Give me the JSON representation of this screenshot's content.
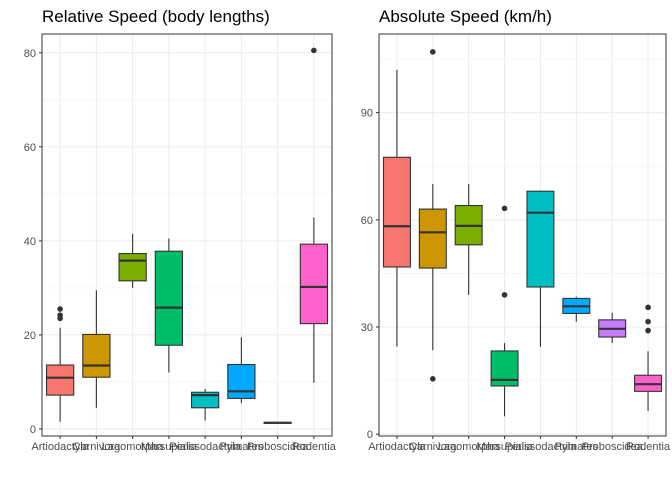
{
  "chart_data": [
    {
      "type": "boxplot",
      "title": "Relative Speed (body lengths)",
      "xlabel": "",
      "ylabel": "",
      "ylim": [
        -1.5,
        84
      ],
      "yticks": [
        0,
        20,
        40,
        60,
        80
      ],
      "grid": true,
      "categories": [
        "Artiodactyla",
        "Carnivora",
        "Lagomorpha",
        "Marsupialia",
        "Perissodactyla",
        "Primates",
        "Proboscidea",
        "Rodentia"
      ],
      "boxes": [
        {
          "min": 1.5,
          "q1": 7.2,
          "median": 10.9,
          "q3": 13.6,
          "max": 21.5,
          "outliers": [
            23.5,
            24.2,
            25.5
          ]
        },
        {
          "min": 4.5,
          "q1": 11.0,
          "median": 13.5,
          "q3": 20.1,
          "max": 29.5,
          "outliers": []
        },
        {
          "min": 30.0,
          "q1": 31.5,
          "median": 35.8,
          "q3": 37.3,
          "max": 41.5,
          "outliers": []
        },
        {
          "min": 12.0,
          "q1": 17.8,
          "median": 25.8,
          "q3": 37.8,
          "max": 40.5,
          "outliers": []
        },
        {
          "min": 1.8,
          "q1": 4.5,
          "median": 7.2,
          "q3": 7.8,
          "max": 8.5,
          "outliers": []
        },
        {
          "min": 5.5,
          "q1": 6.5,
          "median": 8.0,
          "q3": 13.7,
          "max": 19.5,
          "outliers": []
        },
        {
          "min": 1.2,
          "q1": 1.2,
          "median": 1.3,
          "q3": 1.4,
          "max": 1.4,
          "outliers": []
        },
        {
          "min": 9.8,
          "q1": 22.4,
          "median": 30.2,
          "q3": 39.3,
          "max": 45.0,
          "outliers": [
            80.5
          ]
        }
      ]
    },
    {
      "type": "boxplot",
      "title": "Absolute Speed (km/h)",
      "xlabel": "",
      "ylabel": "",
      "ylim": [
        -0.5,
        112
      ],
      "yticks": [
        0,
        30,
        60,
        90
      ],
      "grid": true,
      "categories": [
        "Artiodactyla",
        "Carnivora",
        "Lagomorpha",
        "Marsupialia",
        "Perissodactyla",
        "Primates",
        "Proboscidea",
        "Rodentia"
      ],
      "boxes": [
        {
          "min": 24.5,
          "q1": 46.8,
          "median": 58.2,
          "q3": 77.5,
          "max": 102.0,
          "outliers": []
        },
        {
          "min": 23.5,
          "q1": 46.5,
          "median": 56.5,
          "q3": 63.0,
          "max": 70.0,
          "outliers": [
            15.5,
            107.0
          ]
        },
        {
          "min": 39.0,
          "q1": 53.0,
          "median": 58.3,
          "q3": 64.0,
          "max": 70.0,
          "outliers": []
        },
        {
          "min": 5.0,
          "q1": 13.5,
          "median": 15.2,
          "q3": 23.3,
          "max": 25.5,
          "outliers": [
            39.0,
            63.2
          ]
        },
        {
          "min": 24.5,
          "q1": 41.2,
          "median": 62.0,
          "q3": 68.0,
          "max": 68.0,
          "outliers": []
        },
        {
          "min": 31.5,
          "q1": 33.8,
          "median": 35.8,
          "q3": 38.0,
          "max": 38.5,
          "outliers": []
        },
        {
          "min": 25.5,
          "q1": 27.2,
          "median": 29.5,
          "q3": 32.0,
          "max": 34.0,
          "outliers": []
        },
        {
          "min": 6.5,
          "q1": 12.0,
          "median": 14.0,
          "q3": 16.5,
          "max": 23.2,
          "outliers": [
            29.0,
            31.5,
            35.5
          ]
        }
      ]
    }
  ],
  "colors": {
    "Artiodactyla": "#f8766d",
    "Carnivora": "#cd9600",
    "Lagomorpha": "#7cae00",
    "Marsupialia": "#00be67",
    "Perissodactyla": "#00bfc4",
    "Primates": "#00a9ff",
    "Proboscidea": "#c77cff",
    "Rodentia": "#ff61cc"
  },
  "legend": "none"
}
